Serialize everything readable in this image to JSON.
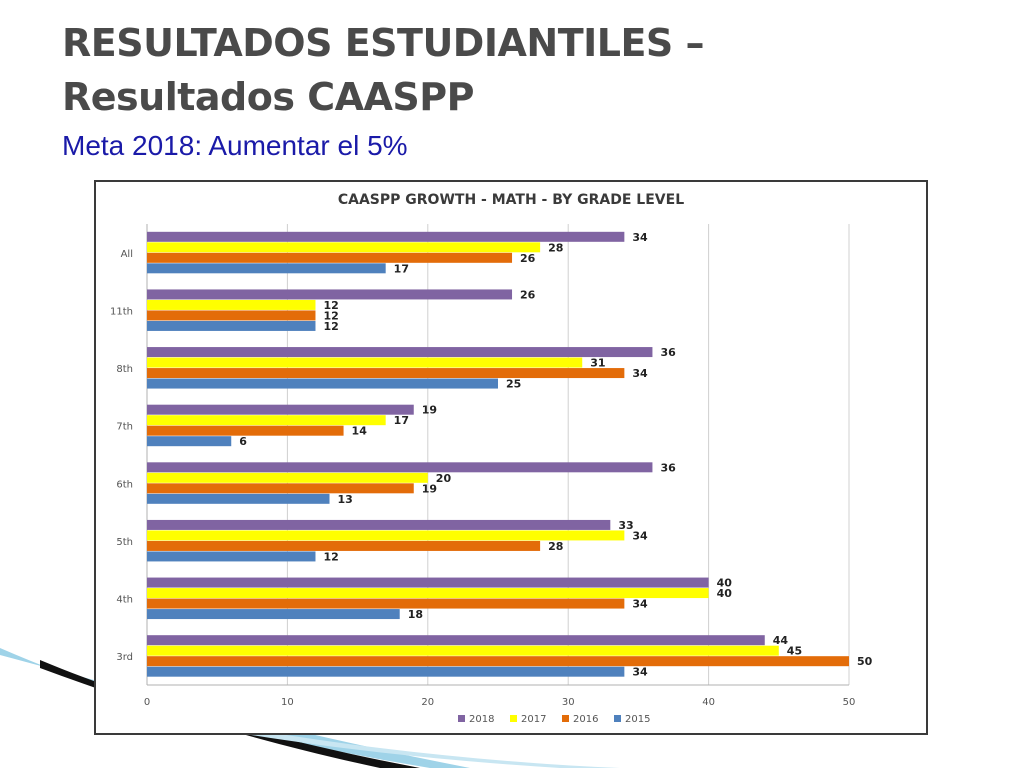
{
  "slide": {
    "title_line1": "RESULTADOS ESTUDIANTILES –",
    "title_line2": "Resultados CAASPP",
    "subtitle": "Meta 2018: Aumentar el 5%"
  },
  "chart_data": {
    "type": "bar",
    "orientation": "horizontal",
    "title": "CAASPP GROWTH - MATH - BY GRADE LEVEL",
    "categories": [
      "All",
      "11th",
      "8th",
      "7th",
      "6th",
      "5th",
      "4th",
      "3rd"
    ],
    "series": [
      {
        "name": "2018",
        "color": "#8064a2",
        "values": [
          34,
          26,
          36,
          19,
          36,
          33,
          40,
          44
        ]
      },
      {
        "name": "2017",
        "color": "#ffff00",
        "values": [
          28,
          12,
          31,
          17,
          20,
          34,
          40,
          45
        ]
      },
      {
        "name": "2016",
        "color": "#e36c09",
        "values": [
          26,
          12,
          34,
          14,
          19,
          28,
          34,
          50
        ]
      },
      {
        "name": "2015",
        "color": "#4f81bd",
        "values": [
          17,
          12,
          25,
          6,
          13,
          12,
          18,
          34
        ]
      }
    ],
    "xlim": [
      0,
      50
    ],
    "xticks": [
      "0",
      "10",
      "20",
      "30",
      "40",
      "50"
    ],
    "grid": true,
    "legend_position": "bottom",
    "data_labels": true
  }
}
